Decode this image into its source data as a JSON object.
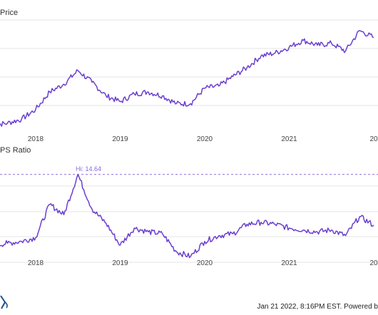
{
  "header": {
    "price_title": "Price",
    "ps_title": "PS Ratio"
  },
  "footer": {
    "text": "Jan 21 2022, 8:16PM EST. Powered b"
  },
  "colors": {
    "series": "#6a3fd1",
    "grid": "#e6e6e6",
    "hi_line": "#8a6ad8",
    "logo": "#1f4e8c"
  },
  "chart_data": [
    {
      "type": "line",
      "title": "Price",
      "x_ticks": [
        "2018",
        "2019",
        "2020",
        "2021",
        "20"
      ],
      "series": [
        {
          "x": [
            "2017-07",
            "2017-09",
            "2017-11",
            "2018-01",
            "2018-03",
            "2018-05",
            "2018-07",
            "2018-09",
            "2018-11",
            "2019-01",
            "2019-03",
            "2019-05",
            "2019-07",
            "2019-09",
            "2019-11",
            "2020-01",
            "2020-03",
            "2020-05",
            "2020-07",
            "2020-09",
            "2020-11",
            "2021-01",
            "2021-03",
            "2021-05",
            "2021-07",
            "2021-09",
            "2021-11",
            "2022-01"
          ],
          "values": [
            0.2,
            0.4,
            0.8,
            1.8,
            3.6,
            4.4,
            5.8,
            4.6,
            3.2,
            2.6,
            3.4,
            3.6,
            3.2,
            2.4,
            2.4,
            4.0,
            4.2,
            5.2,
            6.1,
            7.3,
            7.6,
            8.2,
            8.9,
            8.4,
            8.6,
            7.8,
            9.9,
            9.2
          ]
        }
      ]
    },
    {
      "type": "line",
      "title": "PS Ratio",
      "x_ticks": [
        "2018",
        "2019",
        "2020",
        "2021",
        "20"
      ],
      "annotations": [
        {
          "label": "Hi: 14.64",
          "value": 14.64
        }
      ],
      "series": [
        {
          "x": [
            "2017-07",
            "2017-09",
            "2017-11",
            "2018-01",
            "2018-03",
            "2018-05",
            "2018-07",
            "2018-09",
            "2018-11",
            "2019-01",
            "2019-03",
            "2019-05",
            "2019-07",
            "2019-09",
            "2019-11",
            "2020-01",
            "2020-03",
            "2020-05",
            "2020-07",
            "2020-09",
            "2020-11",
            "2021-01",
            "2021-03",
            "2021-05",
            "2021-07",
            "2021-09",
            "2021-11",
            "2022-01"
          ],
          "values": [
            7.2,
            7.4,
            7.6,
            8.0,
            11.5,
            10.4,
            14.64,
            11.0,
            9.5,
            7.2,
            9.0,
            8.6,
            8.4,
            6.5,
            6.0,
            7.6,
            8.2,
            8.4,
            9.4,
            9.6,
            9.4,
            9.0,
            8.8,
            8.6,
            8.8,
            8.2,
            10.2,
            9.3
          ]
        }
      ]
    }
  ]
}
